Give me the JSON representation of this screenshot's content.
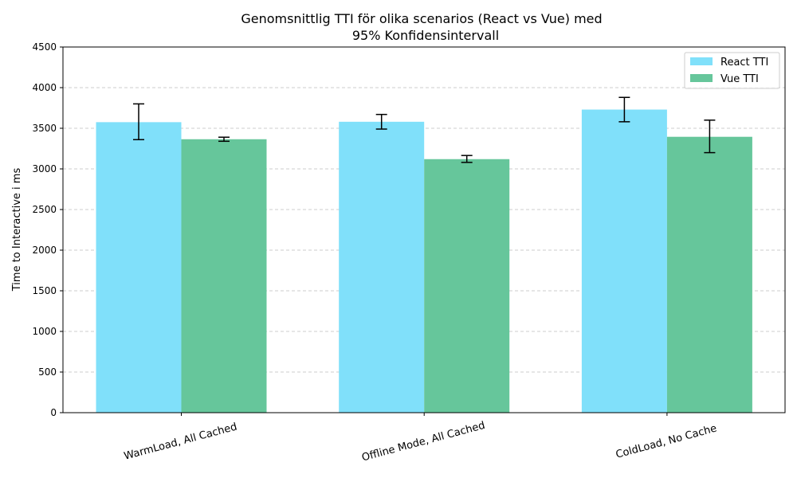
{
  "chart_data": {
    "type": "bar",
    "title_lines": [
      "Genomsnittlig TTI  för olika scenarios (React vs Vue) med",
      "95% Konfidensintervall"
    ],
    "xlabel": "",
    "ylabel": "Time to Interactive  i ms",
    "categories": [
      "WarmLoad, All Cached",
      "Offline Mode, All Cached",
      "ColdLoad, No Cache"
    ],
    "ylim": [
      0,
      4500
    ],
    "yticks": [
      0,
      500,
      1000,
      1500,
      2000,
      2500,
      3000,
      3500,
      4000,
      4500
    ],
    "grid": "y-dashed",
    "legend_position": "top-right",
    "series": [
      {
        "name": "React TTI",
        "color": "#80e0fa",
        "values": [
          3575,
          3580,
          3730
        ],
        "err_low": [
          3360,
          3490,
          3580
        ],
        "err_high": [
          3800,
          3670,
          3880
        ]
      },
      {
        "name": "Vue TTI",
        "color": "#66c69b",
        "values": [
          3365,
          3120,
          3395
        ],
        "err_low": [
          3340,
          3080,
          3200
        ],
        "err_high": [
          3390,
          3165,
          3600
        ]
      }
    ]
  }
}
